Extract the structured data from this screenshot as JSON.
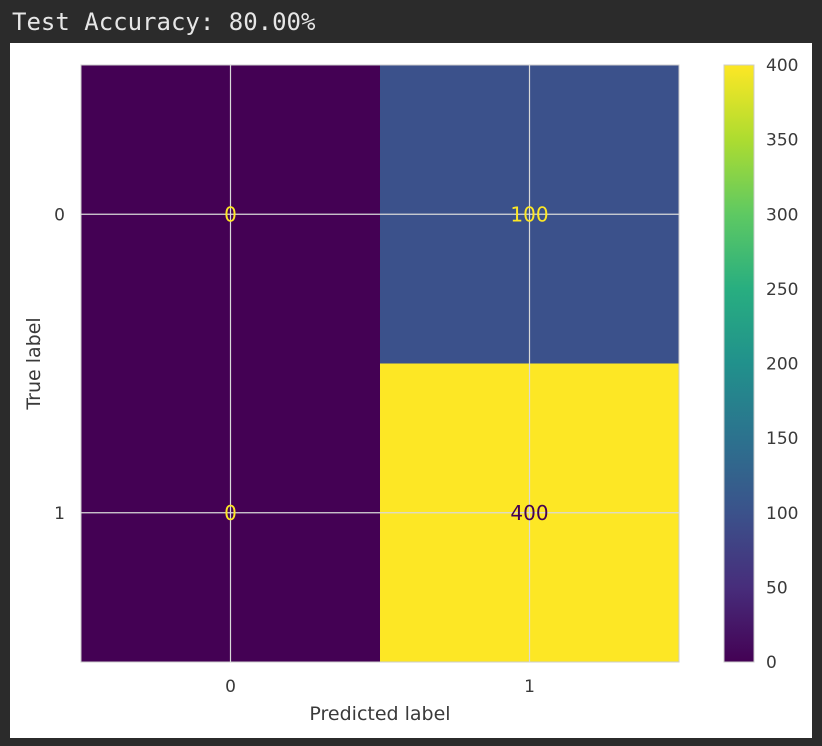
{
  "console": {
    "top_partial_text": "",
    "accuracy_line": "Test Accuracy: 80.00%",
    "bottom_partial_text": ""
  },
  "chart_data": {
    "type": "heatmap",
    "title": "",
    "xlabel": "Predicted label",
    "ylabel": "True label",
    "x_categories": [
      "0",
      "1"
    ],
    "y_categories": [
      "0",
      "1"
    ],
    "matrix": [
      [
        0,
        100
      ],
      [
        0,
        400
      ]
    ],
    "colormap": "viridis",
    "colorbar": {
      "vmin": 0,
      "vmax": 400,
      "ticks": [
        0,
        50,
        100,
        150,
        200,
        250,
        300,
        350,
        400
      ]
    },
    "grid": true,
    "text_colors": {
      "dark_cell": "#fde725",
      "light_cell": "#440154"
    }
  }
}
